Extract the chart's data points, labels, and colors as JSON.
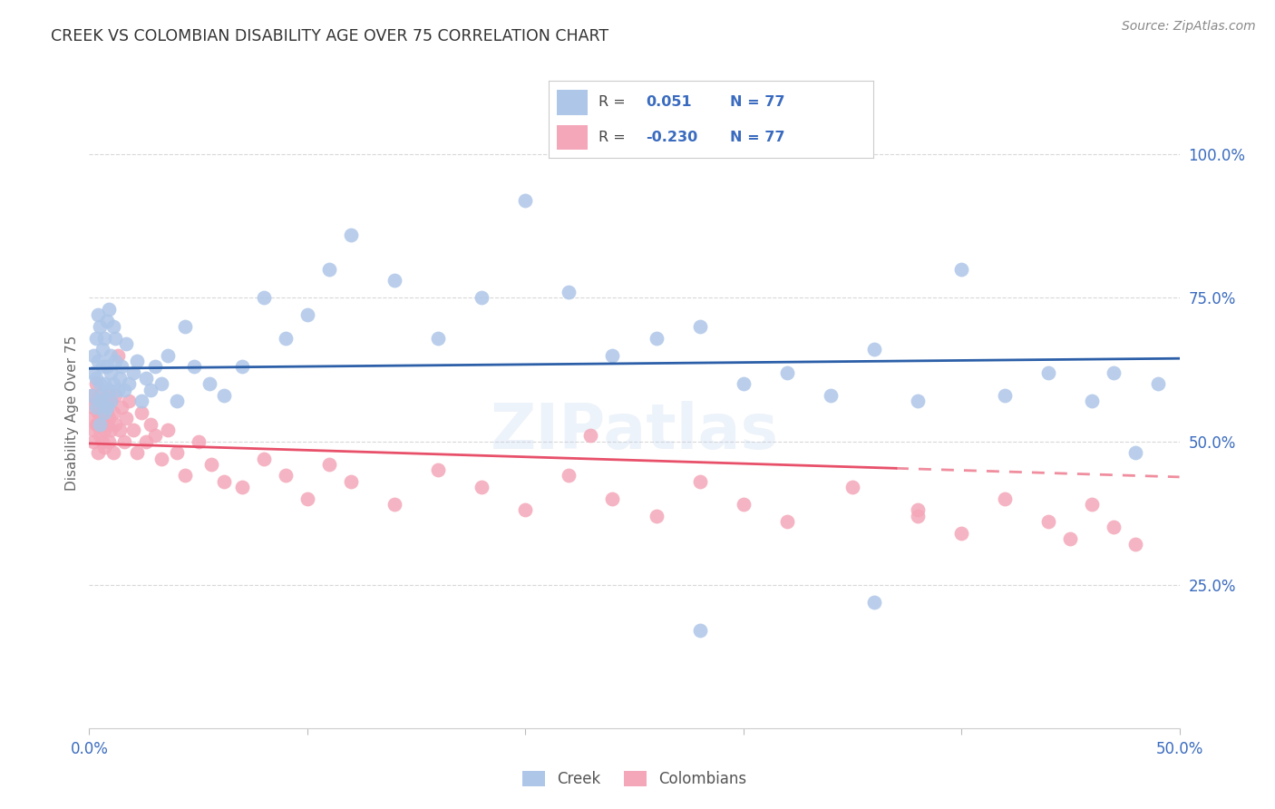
{
  "title": "CREEK VS COLOMBIAN DISABILITY AGE OVER 75 CORRELATION CHART",
  "source": "Source: ZipAtlas.com",
  "ylabel": "Disability Age Over 75",
  "xlim": [
    0.0,
    0.5
  ],
  "ylim": [
    0.0,
    1.1
  ],
  "xtick_positions": [
    0.0,
    0.1,
    0.2,
    0.3,
    0.4,
    0.5
  ],
  "xtick_labels": [
    "0.0%",
    "",
    "",
    "",
    "",
    "50.0%"
  ],
  "ytick_positions": [
    0.25,
    0.5,
    0.75,
    1.0
  ],
  "ytick_labels": [
    "25.0%",
    "50.0%",
    "75.0%",
    "100.0%"
  ],
  "creek_R": 0.051,
  "colombian_R": -0.23,
  "N": 77,
  "creek_color": "#aec6e8",
  "colombian_color": "#f4a7b9",
  "creek_line_color": "#2c5fa8",
  "colombian_line_color": "#e8506a",
  "background_color": "#ffffff",
  "grid_color": "#d8d8d8",
  "title_color": "#333333",
  "watermark": "ZIPatlas",
  "creek_x": [
    0.001,
    0.002,
    0.002,
    0.003,
    0.003,
    0.003,
    0.004,
    0.004,
    0.005,
    0.005,
    0.005,
    0.005,
    0.006,
    0.006,
    0.006,
    0.007,
    0.007,
    0.007,
    0.008,
    0.008,
    0.008,
    0.009,
    0.009,
    0.01,
    0.01,
    0.01,
    0.011,
    0.011,
    0.012,
    0.012,
    0.013,
    0.014,
    0.015,
    0.016,
    0.017,
    0.018,
    0.02,
    0.022,
    0.024,
    0.026,
    0.028,
    0.03,
    0.033,
    0.036,
    0.04,
    0.044,
    0.048,
    0.055,
    0.062,
    0.07,
    0.08,
    0.09,
    0.1,
    0.11,
    0.12,
    0.14,
    0.16,
    0.18,
    0.2,
    0.22,
    0.24,
    0.26,
    0.28,
    0.3,
    0.32,
    0.34,
    0.36,
    0.38,
    0.4,
    0.42,
    0.44,
    0.46,
    0.47,
    0.48,
    0.49,
    0.36,
    0.28
  ],
  "creek_y": [
    0.58,
    0.65,
    0.62,
    0.56,
    0.61,
    0.68,
    0.72,
    0.64,
    0.57,
    0.7,
    0.6,
    0.53,
    0.66,
    0.58,
    0.63,
    0.55,
    0.6,
    0.68,
    0.71,
    0.63,
    0.56,
    0.73,
    0.59,
    0.62,
    0.57,
    0.65,
    0.7,
    0.6,
    0.64,
    0.68,
    0.59,
    0.61,
    0.63,
    0.59,
    0.67,
    0.6,
    0.62,
    0.64,
    0.57,
    0.61,
    0.59,
    0.63,
    0.6,
    0.65,
    0.57,
    0.7,
    0.63,
    0.6,
    0.58,
    0.63,
    0.75,
    0.68,
    0.72,
    0.8,
    0.86,
    0.78,
    0.68,
    0.75,
    0.92,
    0.76,
    0.65,
    0.68,
    0.7,
    0.6,
    0.62,
    0.58,
    0.66,
    0.57,
    0.8,
    0.58,
    0.62,
    0.57,
    0.62,
    0.48,
    0.6,
    0.22,
    0.17
  ],
  "colombian_x": [
    0.001,
    0.001,
    0.002,
    0.002,
    0.002,
    0.003,
    0.003,
    0.003,
    0.004,
    0.004,
    0.004,
    0.005,
    0.005,
    0.005,
    0.006,
    0.006,
    0.006,
    0.007,
    0.007,
    0.007,
    0.008,
    0.008,
    0.008,
    0.009,
    0.009,
    0.01,
    0.01,
    0.011,
    0.011,
    0.012,
    0.012,
    0.013,
    0.014,
    0.015,
    0.016,
    0.017,
    0.018,
    0.02,
    0.022,
    0.024,
    0.026,
    0.028,
    0.03,
    0.033,
    0.036,
    0.04,
    0.044,
    0.05,
    0.056,
    0.062,
    0.07,
    0.08,
    0.09,
    0.1,
    0.11,
    0.12,
    0.14,
    0.16,
    0.18,
    0.2,
    0.22,
    0.24,
    0.26,
    0.28,
    0.3,
    0.32,
    0.35,
    0.38,
    0.4,
    0.42,
    0.44,
    0.45,
    0.46,
    0.47,
    0.48,
    0.23,
    0.38
  ],
  "colombian_y": [
    0.54,
    0.58,
    0.52,
    0.56,
    0.5,
    0.53,
    0.57,
    0.6,
    0.55,
    0.48,
    0.53,
    0.58,
    0.51,
    0.55,
    0.54,
    0.5,
    0.57,
    0.52,
    0.56,
    0.49,
    0.55,
    0.53,
    0.58,
    0.5,
    0.54,
    0.57,
    0.52,
    0.55,
    0.48,
    0.53,
    0.58,
    0.65,
    0.52,
    0.56,
    0.5,
    0.54,
    0.57,
    0.52,
    0.48,
    0.55,
    0.5,
    0.53,
    0.51,
    0.47,
    0.52,
    0.48,
    0.44,
    0.5,
    0.46,
    0.43,
    0.42,
    0.47,
    0.44,
    0.4,
    0.46,
    0.43,
    0.39,
    0.45,
    0.42,
    0.38,
    0.44,
    0.4,
    0.37,
    0.43,
    0.39,
    0.36,
    0.42,
    0.38,
    0.34,
    0.4,
    0.36,
    0.33,
    0.39,
    0.35,
    0.32,
    0.51,
    0.37
  ]
}
